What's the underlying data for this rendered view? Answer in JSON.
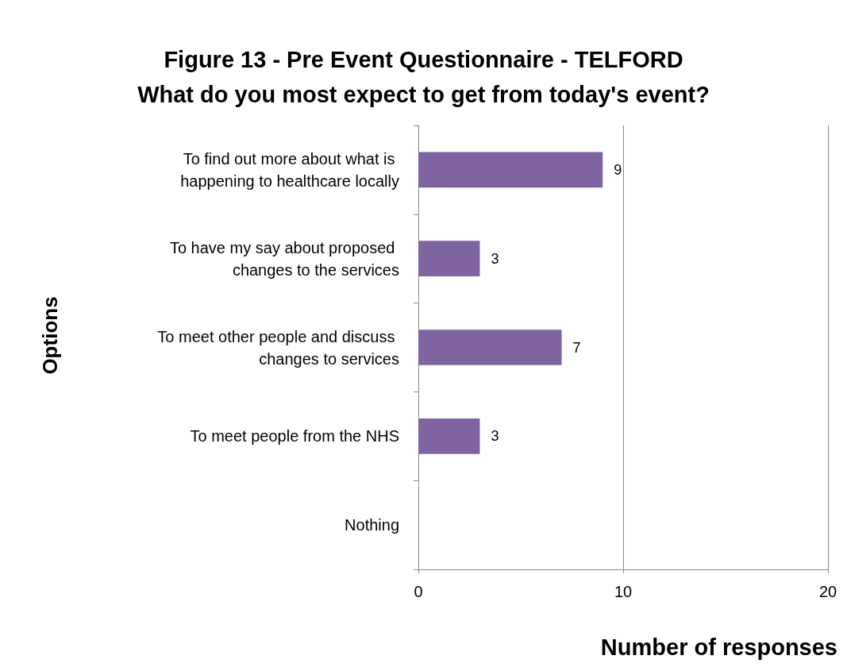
{
  "chart_data": {
    "type": "bar",
    "orientation": "horizontal",
    "title": "Figure 13 - Pre Event Questionnaire - TELFORD\nWhat do you most expect to get from today's event?",
    "xlabel": "Number of responses",
    "ylabel": "Options",
    "categories": [
      "To find out more about what is happening to healthcare locally",
      "To have my say about proposed changes to the services",
      "To meet other people and discuss changes to services",
      "To meet people from the NHS",
      "Nothing"
    ],
    "values": [
      9,
      3,
      7,
      3,
      0
    ],
    "value_labels": [
      "9",
      "3",
      "7",
      "3",
      null
    ],
    "color": "#8064a2",
    "xlim": [
      0,
      20
    ],
    "xticks": [
      0,
      10,
      20
    ],
    "grid": "x"
  }
}
